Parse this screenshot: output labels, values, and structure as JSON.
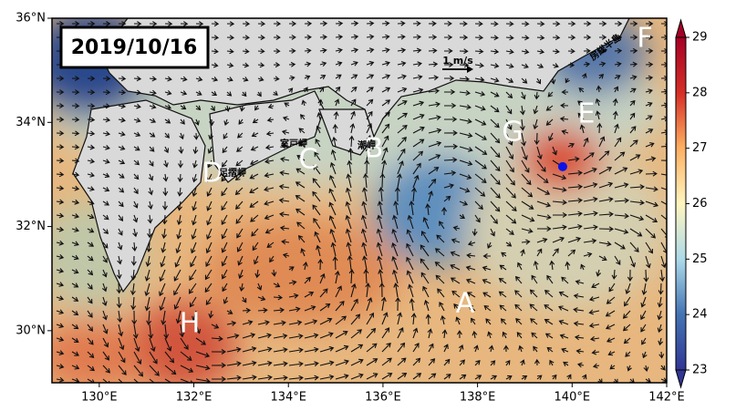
{
  "map": {
    "date": "2019/10/16",
    "xlim": [
      129,
      142
    ],
    "ylim": [
      29,
      36
    ],
    "xticks": [
      {
        "value": 130,
        "label": "130°E"
      },
      {
        "value": 132,
        "label": "132°E"
      },
      {
        "value": 134,
        "label": "134°E"
      },
      {
        "value": 136,
        "label": "136°E"
      },
      {
        "value": 138,
        "label": "138°E"
      },
      {
        "value": 140,
        "label": "140°E"
      },
      {
        "value": 142,
        "label": "142°E"
      }
    ],
    "yticks": [
      {
        "value": 30,
        "label": "30°N"
      },
      {
        "value": 32,
        "label": "32°N"
      },
      {
        "value": 34,
        "label": "34°N"
      },
      {
        "value": 36,
        "label": "36°N"
      }
    ],
    "colorbar": {
      "range": [
        23,
        29
      ],
      "ticks": [
        23,
        24,
        25,
        26,
        27,
        28,
        29
      ]
    },
    "scale_label": "1 m/s",
    "labels": [
      "A",
      "B",
      "C",
      "D",
      "E",
      "F",
      "G",
      "H"
    ],
    "places": [
      "室戸岬",
      "潮岬",
      "足摺岬",
      "房総半島"
    ],
    "marker": {
      "lon": 139.8,
      "lat": 33.15
    }
  }
}
